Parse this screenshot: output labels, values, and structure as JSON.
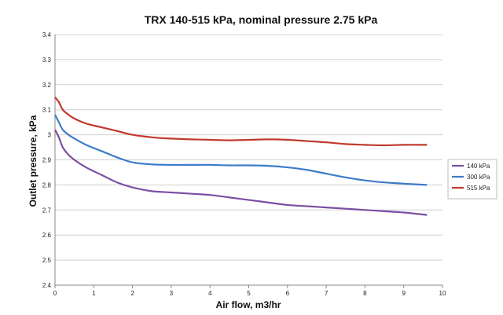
{
  "chart_data": {
    "type": "line",
    "title": "TRX 140-515 kPa, nominal pressure 2.75 kPa",
    "xlabel": "Air flow, m3/hr",
    "ylabel": "Outlet pressure, kPa",
    "xlim": [
      0,
      10
    ],
    "ylim": [
      2.4,
      3.4
    ],
    "xticks": [
      "0",
      "1",
      "2",
      "3",
      "4",
      "5",
      "6",
      "7",
      "8",
      "9",
      "10"
    ],
    "yticks": [
      "2.4",
      "2.5",
      "2.6",
      "2.7",
      "2.8",
      "2.9",
      "3",
      "3.1",
      "3.2",
      "3.3",
      "3.4"
    ],
    "grid": true,
    "legend_position": "right",
    "series": [
      {
        "name": "140 kPa",
        "color": "#7b4fa3",
        "x": [
          0,
          0.1,
          0.2,
          0.35,
          0.5,
          0.8,
          1.2,
          1.6,
          2.0,
          2.5,
          3.0,
          3.5,
          4.0,
          4.5,
          5.0,
          5.5,
          6.0,
          6.5,
          7.0,
          7.5,
          8.0,
          8.5,
          9.0,
          9.6
        ],
        "y": [
          3.02,
          2.99,
          2.95,
          2.92,
          2.9,
          2.87,
          2.84,
          2.81,
          2.79,
          2.775,
          2.77,
          2.765,
          2.76,
          2.75,
          2.74,
          2.73,
          2.72,
          2.715,
          2.71,
          2.705,
          2.7,
          2.695,
          2.69,
          2.68
        ]
      },
      {
        "name": "300 kPa",
        "color": "#3d7cc9",
        "x": [
          0,
          0.1,
          0.2,
          0.35,
          0.5,
          0.8,
          1.2,
          1.6,
          2.0,
          2.5,
          3.0,
          3.5,
          4.0,
          4.5,
          5.0,
          5.5,
          6.0,
          6.5,
          7.0,
          7.5,
          8.0,
          8.5,
          9.0,
          9.6
        ],
        "y": [
          3.08,
          3.05,
          3.02,
          3.0,
          2.985,
          2.96,
          2.935,
          2.91,
          2.89,
          2.882,
          2.88,
          2.88,
          2.88,
          2.878,
          2.878,
          2.876,
          2.87,
          2.86,
          2.845,
          2.83,
          2.818,
          2.81,
          2.805,
          2.8
        ]
      },
      {
        "name": "515 kPa",
        "color": "#c0392b",
        "x": [
          0,
          0.1,
          0.2,
          0.35,
          0.5,
          0.8,
          1.2,
          1.6,
          2.0,
          2.5,
          3.0,
          3.5,
          4.0,
          4.5,
          5.0,
          5.5,
          6.0,
          6.5,
          7.0,
          7.5,
          8.0,
          8.5,
          9.0,
          9.6
        ],
        "y": [
          3.15,
          3.13,
          3.1,
          3.08,
          3.065,
          3.045,
          3.03,
          3.015,
          3.0,
          2.99,
          2.985,
          2.982,
          2.98,
          2.978,
          2.98,
          2.982,
          2.98,
          2.975,
          2.97,
          2.963,
          2.96,
          2.958,
          2.96,
          2.96
        ]
      }
    ]
  }
}
